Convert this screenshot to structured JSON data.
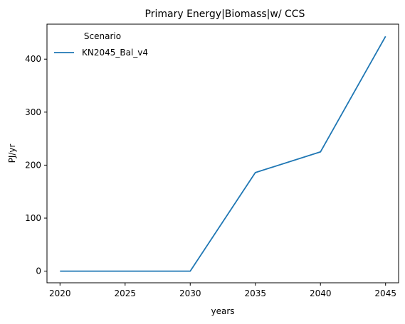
{
  "chart_data": {
    "type": "line",
    "title": "Primary Energy|Biomass|w/ CCS",
    "xlabel": "years",
    "ylabel": "PJ/yr",
    "x": [
      2020,
      2025,
      2030,
      2035,
      2040,
      2045
    ],
    "xlim": [
      2019,
      2046
    ],
    "ylim": [
      -22,
      466
    ],
    "xticks": [
      2020,
      2025,
      2030,
      2035,
      2040,
      2045
    ],
    "yticks": [
      0,
      100,
      200,
      300,
      400
    ],
    "grid": false,
    "legend": {
      "title": "Scenario",
      "placement": "top-left"
    },
    "series": [
      {
        "name": "KN2045_Bal_v4",
        "color": "#1f77b4",
        "values": [
          0,
          0,
          0,
          186,
          225,
          443
        ]
      }
    ]
  }
}
